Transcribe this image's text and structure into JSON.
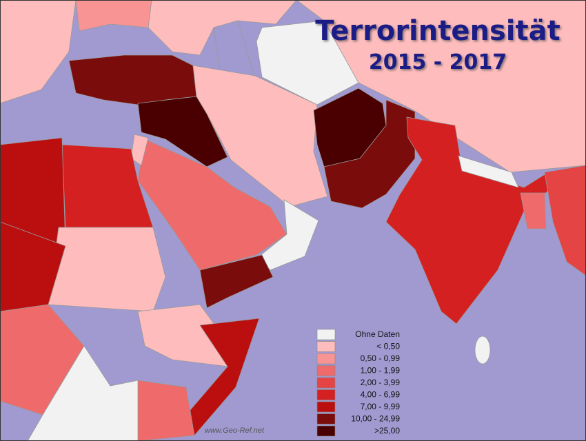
{
  "title": "Terrorintensität",
  "subtitle": "2015 - 2017",
  "legend": [
    {
      "label": "Ohne Daten",
      "color": "#f2f2f2"
    },
    {
      "label": "< 0,50",
      "color": "#ffbcbc"
    },
    {
      "label": "0,50 -  0,99",
      "color": "#f99494"
    },
    {
      "label": "1,00 -  1,99",
      "color": "#ef6a6a"
    },
    {
      "label": "2,00 -  3,99",
      "color": "#e44444"
    },
    {
      "label": "4,00 -  6,99",
      "color": "#d42020"
    },
    {
      "label": "7,00 -  9,99",
      "color": "#bb0f0f"
    },
    {
      "label": "10,00 - 24,99",
      "color": "#7a0c0c"
    },
    {
      "label": ">25,00",
      "color": "#4a0000"
    }
  ],
  "watermark": "www.Geo-Ref.net"
}
